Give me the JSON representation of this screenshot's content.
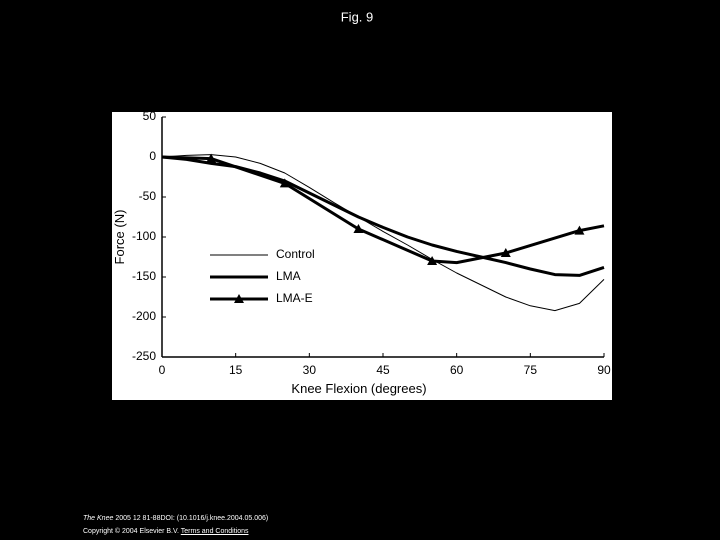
{
  "slide": {
    "title": "Fig. 9",
    "citation": {
      "journal": "The Knee",
      "details": "2005 12 81-88DOI: (10.1016/j.knee.2004.05.006)"
    },
    "copyright": "Copyright © 2004 Elsevier B.V.",
    "link": "Terms and Conditions"
  },
  "chart_data": {
    "type": "line",
    "xlabel": "Knee Flexion (degrees)",
    "ylabel": "Force (N)",
    "xlim": [
      0,
      90
    ],
    "xticks": [
      0,
      15,
      30,
      45,
      60,
      75,
      90
    ],
    "ylim": [
      -250,
      50
    ],
    "yticks": [
      50,
      0,
      -50,
      -100,
      -150,
      -200,
      -250
    ],
    "grid": false,
    "series": [
      {
        "name": "Control",
        "color": "#000000",
        "width": 1,
        "marker": null,
        "x": [
          0,
          5,
          10,
          15,
          20,
          25,
          30,
          35,
          40,
          45,
          50,
          55,
          60,
          65,
          70,
          75,
          80,
          85,
          90
        ],
        "values": [
          0,
          2,
          3,
          0,
          -8,
          -20,
          -38,
          -57,
          -75,
          -93,
          -110,
          -128,
          -145,
          -160,
          -175,
          -186,
          -192,
          -183,
          -153
        ]
      },
      {
        "name": "LMA",
        "color": "#000000",
        "width": 3,
        "marker": null,
        "x": [
          0,
          5,
          10,
          15,
          20,
          25,
          30,
          35,
          40,
          45,
          50,
          55,
          60,
          65,
          70,
          75,
          80,
          85,
          90
        ],
        "values": [
          0,
          -3,
          -8,
          -12,
          -20,
          -30,
          -45,
          -60,
          -75,
          -88,
          -100,
          -110,
          -118,
          -125,
          -132,
          -140,
          -147,
          -148,
          -138
        ]
      },
      {
        "name": "LMA-E",
        "color": "#000000",
        "width": 3,
        "marker": "triangle",
        "x": [
          0,
          10,
          25,
          40,
          55,
          60,
          70,
          85,
          90
        ],
        "values": [
          0,
          -2,
          -33,
          -90,
          -130,
          -132,
          -120,
          -92,
          -86
        ]
      }
    ]
  }
}
